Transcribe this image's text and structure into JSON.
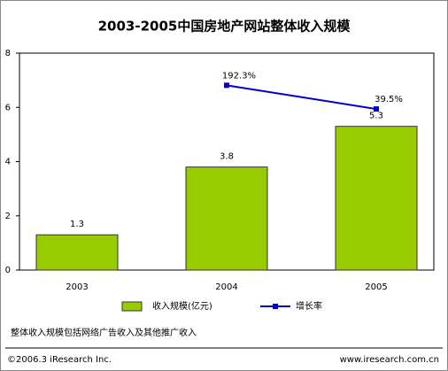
{
  "chart_data": {
    "type": "bar",
    "title": "2003-2005中国房地产网站整体收入规模",
    "categories": [
      "2003",
      "2004",
      "2005"
    ],
    "series": [
      {
        "name": "收入规模(亿元)",
        "type": "bar",
        "color": "#99cc00",
        "values": [
          1.3,
          3.8,
          5.3
        ]
      },
      {
        "name": "增长率",
        "type": "line",
        "axis": "y2",
        "color": "#0000cc",
        "values": [
          null,
          192.3,
          39.5
        ],
        "value_labels": [
          null,
          "192.3%",
          "39.5%"
        ]
      }
    ],
    "ylim": [
      0,
      8
    ],
    "yticks": [
      0,
      2,
      4,
      6,
      8
    ],
    "y2lim": [
      -1000,
      400
    ],
    "grid": false,
    "legend": "bottom",
    "note": "整体收入规模包括网络广告收入及其他推广收入",
    "source": "©2006.3 iResearch Inc.",
    "website": "www.iresearch.com.cn"
  }
}
